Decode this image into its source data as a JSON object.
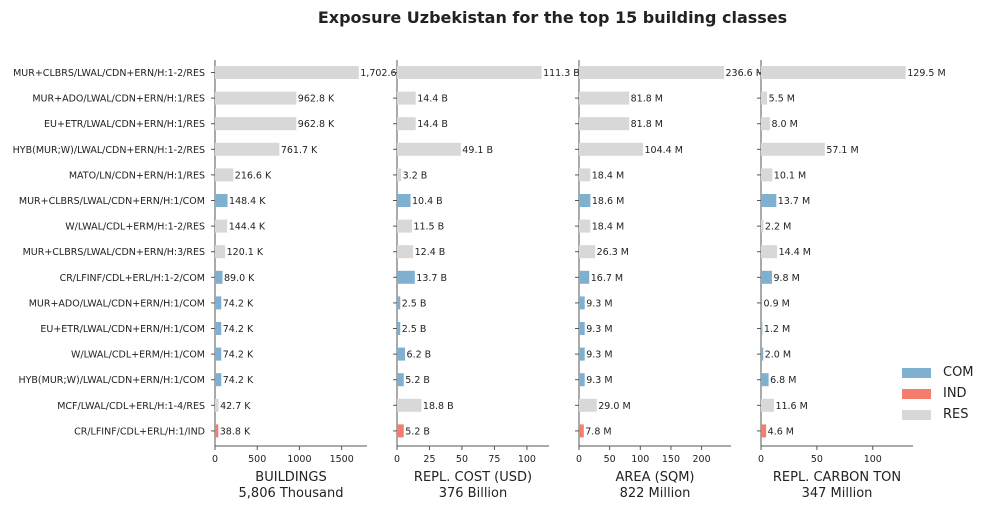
{
  "chart_data": {
    "type": "bar",
    "title": "Exposure Uzbekistan for the top 15 building classes",
    "categories": [
      "MUR+CLBRS/LWAL/CDN+ERN/H:1-2/RES",
      "MUR+ADO/LWAL/CDN+ERN/H:1/RES",
      "EU+ETR/LWAL/CDN+ERN/H:1/RES",
      "HYB(MUR;W)/LWAL/CDN+ERN/H:1-2/RES",
      "MATO/LN/CDN+ERN/H:1/RES",
      "MUR+CLBRS/LWAL/CDN+ERN/H:1/COM",
      "W/LWAL/CDL+ERM/H:1-2/RES",
      "MUR+CLBRS/LWAL/CDN+ERN/H:3/RES",
      "CR/LFINF/CDL+ERL/H:1-2/COM",
      "MUR+ADO/LWAL/CDN+ERN/H:1/COM",
      "EU+ETR/LWAL/CDN+ERN/H:1/COM",
      "W/LWAL/CDL+ERM/H:1/COM",
      "HYB(MUR;W)/LWAL/CDN+ERN/H:1/COM",
      "MCF/LWAL/CDL+ERL/H:1-4/RES",
      "CR/LFINF/CDL+ERL/H:1/IND"
    ],
    "occupancy": [
      "RES",
      "RES",
      "RES",
      "RES",
      "RES",
      "COM",
      "RES",
      "RES",
      "COM",
      "COM",
      "COM",
      "COM",
      "COM",
      "RES",
      "IND"
    ],
    "colors": {
      "COM": "#7fb0d0",
      "IND": "#f47d6c",
      "RES": "#d8d8d8"
    },
    "legend": {
      "position": "bottom-right",
      "entries": [
        "COM",
        "IND",
        "RES"
      ]
    },
    "panels": [
      {
        "xlabel": "BUILDINGS",
        "total": "5,806 Thousand",
        "xlim": [
          0,
          1800
        ],
        "ticks": [
          0,
          500,
          1000,
          1500
        ],
        "values": [
          1702.6,
          962.8,
          962.8,
          761.7,
          216.6,
          148.4,
          144.4,
          120.1,
          89.0,
          74.2,
          74.2,
          74.2,
          74.2,
          42.7,
          38.8
        ],
        "labels": [
          "1,702.6 K",
          "962.8 K",
          "962.8 K",
          "761.7 K",
          "216.6 K",
          "148.4 K",
          "144.4 K",
          "120.1 K",
          "89.0 K",
          "74.2 K",
          "74.2 K",
          "74.2 K",
          "74.2 K",
          "42.7 K",
          "38.8 K"
        ]
      },
      {
        "xlabel": "REPL. COST (USD)",
        "total": "376 Billion",
        "xlim": [
          0,
          117
        ],
        "ticks": [
          0,
          25,
          50,
          75,
          100
        ],
        "values": [
          111.3,
          14.4,
          14.4,
          49.1,
          3.2,
          10.4,
          11.5,
          12.4,
          13.7,
          2.5,
          2.5,
          6.2,
          5.2,
          18.8,
          5.2
        ],
        "labels": [
          "111.3 B",
          "14.4 B",
          "14.4 B",
          "49.1 B",
          "3.2 B",
          "10.4 B",
          "11.5 B",
          "12.4 B",
          "13.7 B",
          "2.5 B",
          "2.5 B",
          "6.2 B",
          "5.2 B",
          "18.8 B",
          "5.2 B"
        ]
      },
      {
        "xlabel": "AREA (SQM)",
        "total": "822 Million",
        "xlim": [
          0,
          248
        ],
        "ticks": [
          0,
          50,
          100,
          150,
          200
        ],
        "values": [
          236.6,
          81.8,
          81.8,
          104.4,
          18.4,
          18.6,
          18.4,
          26.3,
          16.7,
          9.3,
          9.3,
          9.3,
          9.3,
          29.0,
          7.8
        ],
        "labels": [
          "236.6 M",
          "81.8 M",
          "81.8 M",
          "104.4 M",
          "18.4 M",
          "18.6 M",
          "18.4 M",
          "26.3 M",
          "16.7 M",
          "9.3 M",
          "9.3 M",
          "9.3 M",
          "9.3 M",
          "29.0 M",
          "7.8 M"
        ]
      },
      {
        "xlabel": "REPL. CARBON TON",
        "total": "347 Million",
        "xlim": [
          0,
          136
        ],
        "ticks": [
          0,
          50,
          100
        ],
        "values": [
          129.5,
          5.5,
          8.0,
          57.1,
          10.1,
          13.7,
          2.2,
          14.4,
          9.8,
          0.9,
          1.2,
          2.0,
          6.8,
          11.6,
          4.6
        ],
        "labels": [
          "129.5 M",
          "5.5 M",
          "8.0 M",
          "57.1 M",
          "10.1 M",
          "13.7 M",
          "2.2 M",
          "14.4 M",
          "9.8 M",
          "0.9 M",
          "1.2 M",
          "2.0 M",
          "6.8 M",
          "11.6 M",
          "4.6 M"
        ]
      }
    ]
  }
}
